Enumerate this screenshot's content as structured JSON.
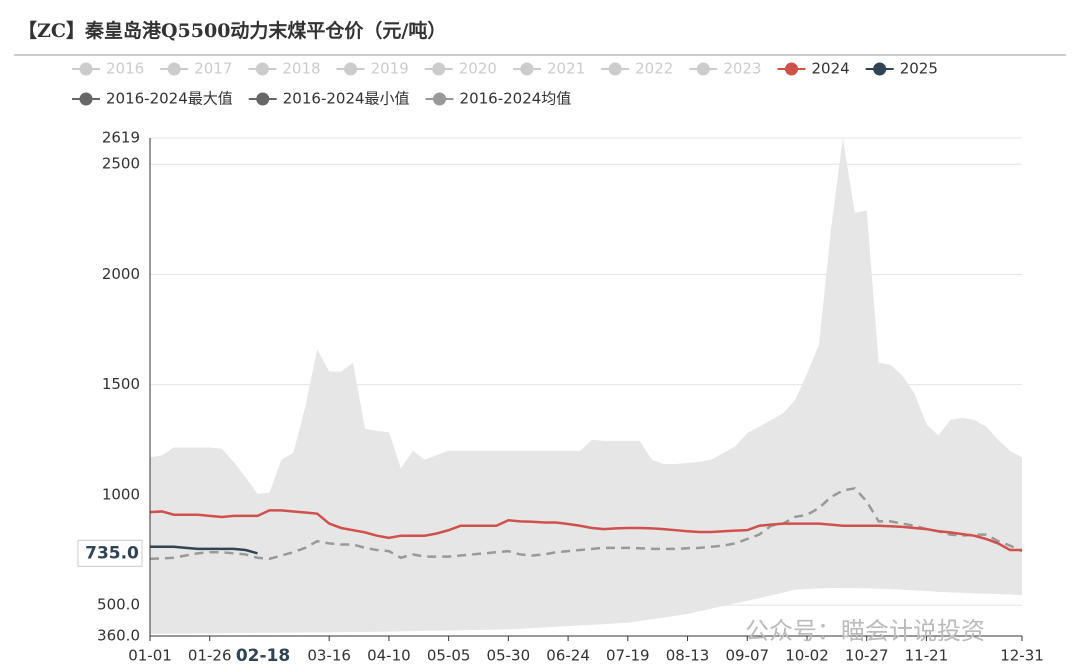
{
  "chart_data": {
    "type": "line",
    "title": "【ZC】秦皇岛港Q5500动力末煤平仓价（元/吨）",
    "watermark": "公众号：瞄会计说投资",
    "inactive_legend": [
      "2016",
      "2017",
      "2018",
      "2019",
      "2020",
      "2021",
      "2022",
      "2023"
    ],
    "inactive_color": "#cccccc",
    "band_color": "#e6e6e6",
    "categories": [
      "01-01",
      null,
      null,
      null,
      null,
      "01-26",
      null,
      null,
      null,
      null,
      null,
      null,
      null,
      null,
      null,
      "03-16",
      null,
      null,
      null,
      null,
      "04-10",
      null,
      null,
      null,
      null,
      "05-05",
      null,
      null,
      null,
      null,
      "05-30",
      null,
      null,
      null,
      null,
      "06-24",
      null,
      null,
      null,
      null,
      "07-19",
      null,
      null,
      null,
      null,
      "08-13",
      null,
      null,
      null,
      null,
      "09-07",
      null,
      null,
      null,
      null,
      "10-02",
      null,
      null,
      null,
      null,
      "10-27",
      null,
      null,
      null,
      null,
      "11-21",
      null,
      null,
      null,
      null,
      null,
      null,
      null,
      "12-31"
    ],
    "series": [
      {
        "name": "2024",
        "color": "#d0504c",
        "style": "line",
        "values": [
          922,
          925,
          910,
          910,
          910,
          905,
          900,
          905,
          905,
          905,
          930,
          930,
          925,
          920,
          915,
          870,
          850,
          840,
          830,
          815,
          805,
          815,
          815,
          815,
          825,
          840,
          860,
          860,
          860,
          860,
          885,
          880,
          878,
          875,
          875,
          868,
          860,
          850,
          845,
          848,
          850,
          850,
          848,
          845,
          840,
          835,
          832,
          832,
          835,
          838,
          840,
          860,
          865,
          870,
          870,
          870,
          870,
          865,
          860,
          860,
          860,
          860,
          858,
          855,
          850,
          845,
          835,
          830,
          822,
          815,
          800,
          780,
          750,
          750
        ]
      },
      {
        "name": "2025",
        "color": "#2f4554",
        "style": "line",
        "values": [
          765,
          765,
          765,
          760,
          755,
          755,
          755,
          755,
          750,
          735,
          null,
          null,
          null,
          null,
          null,
          null,
          null,
          null,
          null,
          null,
          null,
          null,
          null,
          null,
          null,
          null,
          null,
          null,
          null,
          null,
          null,
          null,
          null,
          null,
          null,
          null,
          null,
          null,
          null,
          null,
          null,
          null,
          null,
          null,
          null,
          null,
          null,
          null,
          null,
          null,
          null,
          null,
          null,
          null,
          null,
          null,
          null,
          null,
          null,
          null,
          null,
          null,
          null,
          null,
          null,
          null,
          null,
          null,
          null,
          null,
          null,
          null,
          null,
          null
        ]
      },
      {
        "name": "2016-2024最大值",
        "color": "#666666",
        "style": "band-upper",
        "values": [
          1170,
          1180,
          1215,
          1215,
          1215,
          1215,
          1210,
          1150,
          1080,
          1005,
          1010,
          1160,
          1190,
          1400,
          1660,
          1560,
          1560,
          1600,
          1300,
          1290,
          1285,
          1120,
          1200,
          1160,
          1180,
          1200,
          1200,
          1200,
          1200,
          1200,
          1200,
          1200,
          1200,
          1200,
          1200,
          1200,
          1200,
          1250,
          1245,
          1245,
          1245,
          1245,
          1160,
          1140,
          1140,
          1145,
          1150,
          1160,
          1190,
          1220,
          1280,
          1310,
          1340,
          1370,
          1430,
          1550,
          1680,
          2200,
          2619,
          2280,
          2290,
          1600,
          1590,
          1540,
          1460,
          1320,
          1270,
          1340,
          1350,
          1340,
          1310,
          1250,
          1200,
          1170
        ]
      },
      {
        "name": "2016-2024最小值",
        "color": "#666666",
        "style": "band-lower",
        "values": [
          370,
          370,
          371,
          371,
          372,
          372,
          372,
          373,
          373,
          374,
          374,
          375,
          375,
          376,
          376,
          377,
          377,
          378,
          378,
          379,
          380,
          381,
          382,
          383,
          384,
          385,
          386,
          387,
          388,
          389,
          390,
          393,
          396,
          399,
          402,
          405,
          408,
          411,
          414,
          417,
          420,
          428,
          436,
          444,
          452,
          460,
          472,
          484,
          496,
          508,
          520,
          532,
          544,
          557,
          570,
          573,
          576,
          578,
          578,
          577,
          576,
          575,
          573,
          570,
          567,
          564,
          560,
          558,
          556,
          554,
          552,
          550,
          548,
          545
        ]
      },
      {
        "name": "2016-2024均值",
        "color": "#999999",
        "style": "dashed",
        "values": [
          710,
          712,
          715,
          725,
          735,
          740,
          740,
          735,
          730,
          715,
          710,
          725,
          740,
          760,
          790,
          780,
          775,
          775,
          760,
          750,
          745,
          715,
          730,
          720,
          720,
          720,
          725,
          730,
          735,
          740,
          745,
          730,
          725,
          730,
          740,
          745,
          750,
          755,
          760,
          760,
          760,
          758,
          755,
          755,
          755,
          758,
          760,
          765,
          770,
          780,
          800,
          820,
          860,
          870,
          900,
          910,
          940,
          990,
          1020,
          1030,
          970,
          880,
          880,
          870,
          860,
          845,
          835,
          820,
          815,
          820,
          820,
          790,
          770,
          745
        ]
      }
    ],
    "ylim": [
      360,
      2619
    ],
    "yticks": [
      {
        "value": 360,
        "label": "360.0"
      },
      {
        "value": 500,
        "label": "500.0"
      },
      1000,
      1500,
      2000,
      2500,
      2619
    ],
    "grid": true,
    "pointer": {
      "x_label": "02-18",
      "y": {
        "value": 735,
        "label": "735.0"
      }
    }
  }
}
